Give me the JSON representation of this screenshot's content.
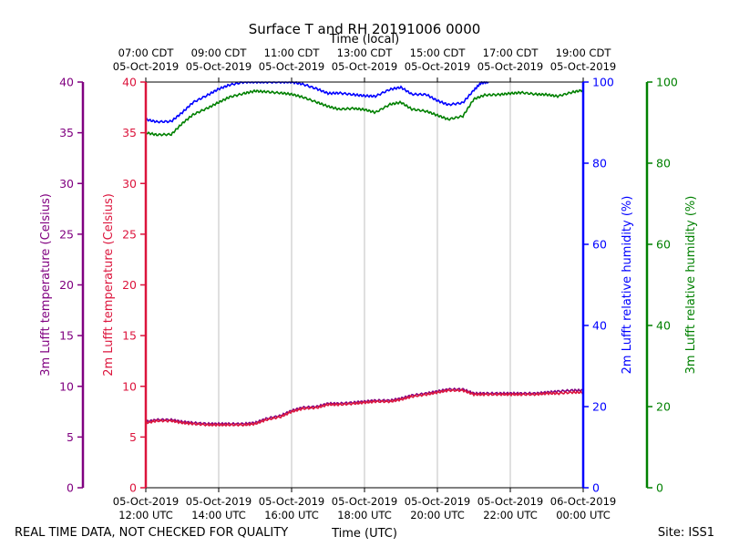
{
  "chart_data": {
    "type": "line",
    "title": "Surface T and RH 20191006 0000",
    "top_axis_title": "Time (local)",
    "xlabel": "Time (UTC)",
    "footer_left": "REAL TIME DATA, NOT CHECKED FOR QUALITY",
    "footer_right": "Site: ISS1",
    "x_unit": "hours UTC since 05-Oct-2019 00:00",
    "xlim": [
      12,
      24
    ],
    "bottom_ticks": [
      {
        "x": 12,
        "date": "05-Oct-2019",
        "time": "12:00 UTC"
      },
      {
        "x": 14,
        "date": "05-Oct-2019",
        "time": "14:00 UTC"
      },
      {
        "x": 16,
        "date": "05-Oct-2019",
        "time": "16:00 UTC"
      },
      {
        "x": 18,
        "date": "05-Oct-2019",
        "time": "18:00 UTC"
      },
      {
        "x": 20,
        "date": "05-Oct-2019",
        "time": "20:00 UTC"
      },
      {
        "x": 22,
        "date": "05-Oct-2019",
        "time": "22:00 UTC"
      },
      {
        "x": 24,
        "date": "06-Oct-2019",
        "time": "00:00 UTC"
      }
    ],
    "top_ticks": [
      {
        "x": 12,
        "time": "07:00 CDT",
        "date": "05-Oct-2019"
      },
      {
        "x": 14,
        "time": "09:00 CDT",
        "date": "05-Oct-2019"
      },
      {
        "x": 16,
        "time": "11:00 CDT",
        "date": "05-Oct-2019"
      },
      {
        "x": 18,
        "time": "13:00 CDT",
        "date": "05-Oct-2019"
      },
      {
        "x": 20,
        "time": "15:00 CDT",
        "date": "05-Oct-2019"
      },
      {
        "x": 22,
        "time": "17:00 CDT",
        "date": "05-Oct-2019"
      },
      {
        "x": 24,
        "time": "19:00 CDT",
        "date": "05-Oct-2019"
      }
    ],
    "axes": [
      {
        "id": "t3",
        "label": "3m Lufft temperature (Celsius)",
        "color": "#800080",
        "ylim": [
          0,
          40
        ],
        "ticks": [
          "0",
          "5",
          "10",
          "15",
          "20",
          "25",
          "30",
          "35",
          "40"
        ]
      },
      {
        "id": "t2",
        "label": "2m Lufft temperature (Celsius)",
        "color": "#dc143c",
        "ylim": [
          0,
          40
        ],
        "ticks": [
          "0",
          "5",
          "10",
          "15",
          "20",
          "25",
          "30",
          "35",
          "40"
        ]
      },
      {
        "id": "rh2",
        "label": "2m Lufft relative humidity (%)",
        "color": "#0000ff",
        "ylim": [
          0,
          100
        ],
        "ticks": [
          "0",
          "20",
          "40",
          "60",
          "80",
          "100"
        ]
      },
      {
        "id": "rh3",
        "label": "3m Lufft relative humidity (%)",
        "color": "#008000",
        "ylim": [
          0,
          100
        ],
        "ticks": [
          "0",
          "20",
          "40",
          "60",
          "80",
          "100"
        ]
      }
    ],
    "series": [
      {
        "name": "2m Lufft relative humidity",
        "axis": "rh2",
        "color": "#0000ff",
        "x": [
          12,
          12.3,
          12.7,
          13.0,
          13.3,
          13.7,
          14.0,
          14.3,
          14.7,
          15.0,
          15.3,
          15.7,
          16.0,
          16.3,
          16.7,
          17.0,
          17.3,
          17.7,
          18.0,
          18.3,
          18.7,
          19.0,
          19.3,
          19.7,
          20.0,
          20.3,
          20.7,
          21.0,
          21.2,
          21.4
        ],
        "values": [
          90.8,
          90.2,
          90.3,
          92.5,
          95.0,
          96.8,
          98.3,
          99.3,
          100,
          100,
          100,
          100,
          100,
          99.5,
          98.3,
          97.2,
          97.3,
          96.9,
          96.6,
          96.5,
          98.2,
          98.7,
          97.0,
          96.9,
          95.4,
          94.4,
          94.9,
          98.0,
          99.8,
          100
        ]
      },
      {
        "name": "3m Lufft relative humidity",
        "axis": "rh3",
        "color": "#008000",
        "x": [
          12,
          12.3,
          12.7,
          13.0,
          13.3,
          13.7,
          14.0,
          14.3,
          14.7,
          15.0,
          15.3,
          15.7,
          16.0,
          16.3,
          16.7,
          17.0,
          17.3,
          17.7,
          18.0,
          18.3,
          18.7,
          19.0,
          19.3,
          19.7,
          20.0,
          20.3,
          20.7,
          21.0,
          21.3,
          21.7,
          22.0,
          22.3,
          22.7,
          23.0,
          23.3,
          23.7,
          24.0
        ],
        "values": [
          87.5,
          87.0,
          87.1,
          89.8,
          92.0,
          93.6,
          95.0,
          96.3,
          97.2,
          97.8,
          97.6,
          97.3,
          97.0,
          96.3,
          95.0,
          94.0,
          93.3,
          93.5,
          93.2,
          92.5,
          94.5,
          95.0,
          93.3,
          92.8,
          91.8,
          90.8,
          91.6,
          95.8,
          96.8,
          96.9,
          97.2,
          97.4,
          97.0,
          96.9,
          96.5,
          97.5,
          98.0
        ]
      },
      {
        "name": "3m Lufft temperature",
        "axis": "t3",
        "color": "#800080",
        "x": [
          12,
          12.3,
          12.7,
          13.0,
          13.3,
          13.7,
          14.0,
          14.3,
          14.7,
          15.0,
          15.3,
          15.7,
          16.0,
          16.3,
          16.7,
          17.0,
          17.3,
          17.7,
          18.0,
          18.3,
          18.7,
          19.0,
          19.3,
          19.7,
          20.0,
          20.3,
          20.7,
          21.0,
          21.3,
          21.7,
          22.0,
          22.3,
          22.7,
          23.0,
          23.3,
          23.7,
          24.0
        ],
        "values": [
          6.5,
          6.7,
          6.7,
          6.5,
          6.4,
          6.3,
          6.3,
          6.3,
          6.3,
          6.4,
          6.8,
          7.1,
          7.6,
          7.9,
          8.0,
          8.3,
          8.3,
          8.4,
          8.5,
          8.6,
          8.6,
          8.8,
          9.1,
          9.3,
          9.5,
          9.7,
          9.7,
          9.3,
          9.3,
          9.3,
          9.3,
          9.3,
          9.3,
          9.4,
          9.5,
          9.6,
          9.6
        ]
      },
      {
        "name": "2m Lufft temperature",
        "axis": "t2",
        "color": "#dc143c",
        "x": [
          12,
          12.3,
          12.7,
          13.0,
          13.3,
          13.7,
          14.0,
          14.3,
          14.7,
          15.0,
          15.3,
          15.7,
          16.0,
          16.3,
          16.7,
          17.0,
          17.3,
          17.7,
          18.0,
          18.3,
          18.7,
          19.0,
          19.3,
          19.7,
          20.0,
          20.3,
          20.7,
          21.0,
          21.3,
          21.7,
          22.0,
          22.3,
          22.7,
          23.0,
          23.3,
          23.7,
          24.0
        ],
        "values": [
          6.4,
          6.6,
          6.6,
          6.4,
          6.3,
          6.2,
          6.2,
          6.2,
          6.2,
          6.3,
          6.7,
          7.0,
          7.5,
          7.8,
          7.9,
          8.2,
          8.2,
          8.3,
          8.4,
          8.5,
          8.5,
          8.7,
          9.0,
          9.2,
          9.4,
          9.6,
          9.6,
          9.2,
          9.2,
          9.2,
          9.2,
          9.2,
          9.2,
          9.3,
          9.3,
          9.4,
          9.4
        ]
      }
    ]
  }
}
